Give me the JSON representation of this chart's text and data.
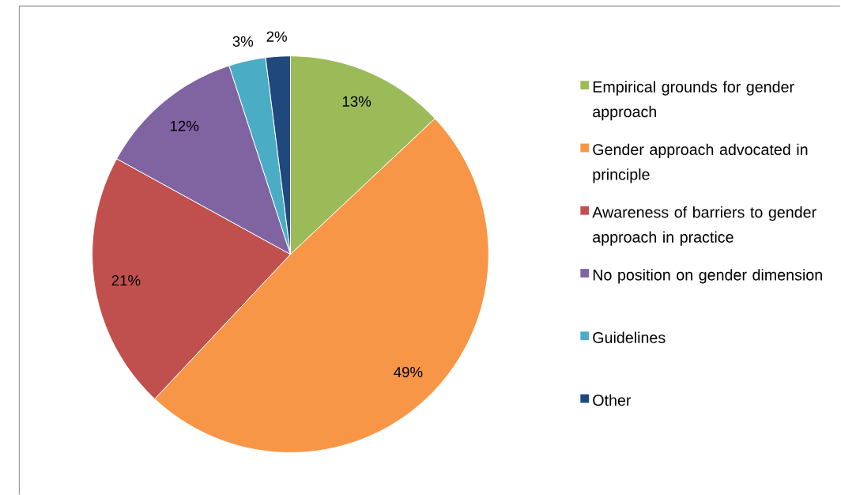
{
  "chart_data": {
    "type": "pie",
    "categories": [
      "Empirical grounds for gender approach",
      "Gender approach advocated in principle",
      "Awareness of barriers to gender approach in practice",
      "No position on gender dimension",
      "Guidelines",
      "Other"
    ],
    "values": [
      13,
      49,
      21,
      12,
      3,
      2
    ],
    "colors": [
      "#9bbb59",
      "#f79646",
      "#c0504d",
      "#8064a2",
      "#4bacc6",
      "#1f497d"
    ],
    "value_labels": [
      "13%",
      "49%",
      "21%",
      "12%",
      "3%",
      "2%"
    ],
    "legend": "right"
  }
}
